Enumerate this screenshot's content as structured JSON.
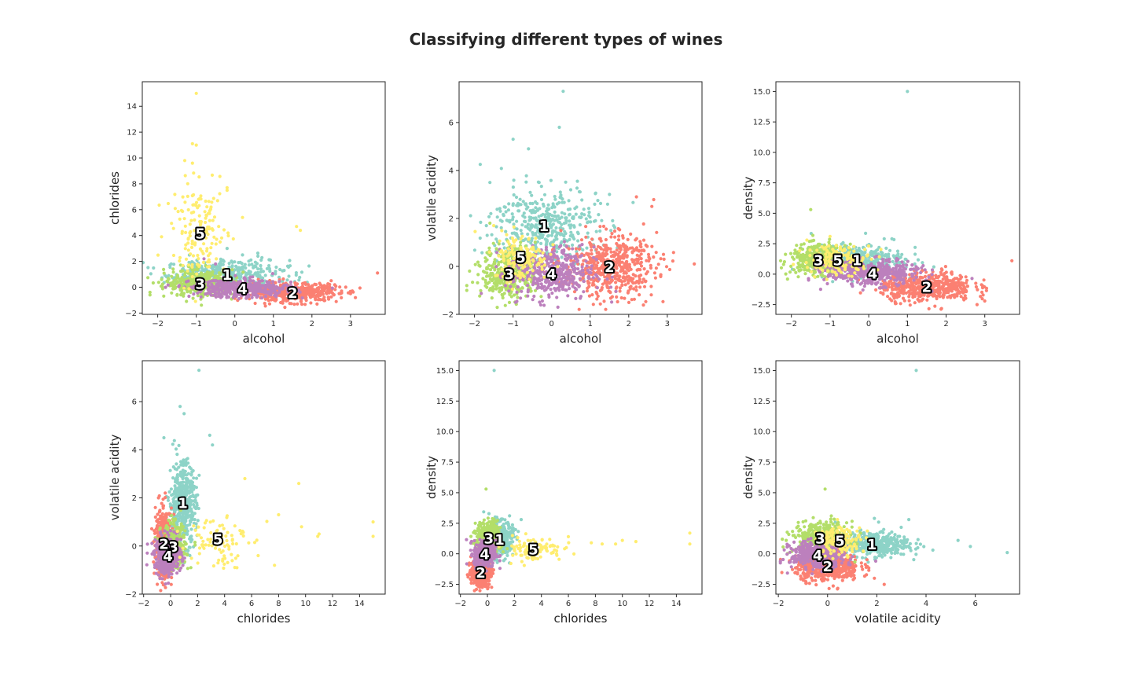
{
  "title": "Classifying different types of wines",
  "cluster_colors": {
    "1": "#8dd3c7",
    "2": "#fb8072",
    "3": "#b3de69",
    "4": "#bc80bd",
    "5": "#ffed6f"
  },
  "chart_data": [
    {
      "type": "scatter",
      "xlabel": "alcohol",
      "ylabel": "chlorides",
      "xlim": [
        -2.4,
        3.9
      ],
      "ylim": [
        -2.1,
        15.9
      ],
      "xticks": [
        -2,
        -1,
        0,
        1,
        2,
        3
      ],
      "yticks": [
        -2,
        0,
        2,
        4,
        6,
        8,
        10,
        12,
        14
      ],
      "xtick_labels": [
        "−2",
        "−1",
        "0",
        "1",
        "2",
        "3"
      ],
      "ytick_labels": [
        "−2",
        "0",
        "2",
        "4",
        "6",
        "8",
        "10",
        "12",
        "14"
      ],
      "clusters": [
        {
          "label": "1",
          "color": "#8dd3c7",
          "center": [
            -0.2,
            1.0
          ],
          "spread": [
            0.8,
            0.55
          ],
          "count": 380,
          "outliers": [
            [
              -0.2,
              3.0
            ],
            [
              0.2,
              2.5
            ],
            [
              0.6,
              2.4
            ],
            [
              0.9,
              1.4
            ]
          ]
        },
        {
          "label": "2",
          "color": "#fb8072",
          "center": [
            1.5,
            -0.4
          ],
          "spread": [
            0.6,
            0.35
          ],
          "count": 500,
          "outliers": [
            [
              3.0,
              -0.5
            ],
            [
              3.7,
              1.1
            ],
            [
              2.2,
              0.3
            ],
            [
              2.5,
              0.5
            ]
          ]
        },
        {
          "label": "3",
          "color": "#b3de69",
          "center": [
            -0.9,
            0.3
          ],
          "spread": [
            0.45,
            0.5
          ],
          "count": 360,
          "outliers": [
            [
              -2.2,
              -0.4
            ],
            [
              -2.2,
              -0.6
            ],
            [
              -1.6,
              1.4
            ],
            [
              -1.2,
              1.6
            ]
          ]
        },
        {
          "label": "4",
          "color": "#bc80bd",
          "center": [
            0.2,
            -0.1
          ],
          "spread": [
            0.65,
            0.35
          ],
          "count": 420,
          "outliers": [
            [
              -0.8,
              2.2
            ],
            [
              -0.5,
              1.8
            ]
          ]
        },
        {
          "label": "5",
          "color": "#ffed6f",
          "center": [
            -0.9,
            4.2
          ],
          "spread": [
            0.35,
            1.8
          ],
          "count": 150,
          "outliers": [
            [
              -1.0,
              15.0
            ],
            [
              -1.1,
              11.1
            ],
            [
              -1.0,
              11.0
            ],
            [
              -1.3,
              9.8
            ],
            [
              -1.1,
              9.6
            ],
            [
              -0.2,
              7.7
            ],
            [
              -0.2,
              7.5
            ],
            [
              1.6,
              4.7
            ],
            [
              1.7,
              4.4
            ],
            [
              -1.9,
              3.9
            ],
            [
              0.2,
              5.4
            ]
          ]
        }
      ]
    },
    {
      "type": "scatter",
      "xlabel": "alcohol",
      "ylabel": "volatile acidity",
      "xlim": [
        -2.4,
        3.9
      ],
      "ylim": [
        -2.0,
        7.7
      ],
      "xticks": [
        -2,
        -1,
        0,
        1,
        2,
        3
      ],
      "yticks": [
        -2,
        0,
        2,
        4,
        6
      ],
      "xtick_labels": [
        "−2",
        "−1",
        "0",
        "1",
        "2",
        "3"
      ],
      "ytick_labels": [
        "−2",
        "0",
        "2",
        "4",
        "6"
      ],
      "clusters": [
        {
          "label": "1",
          "color": "#8dd3c7",
          "center": [
            -0.2,
            1.7
          ],
          "spread": [
            0.7,
            0.8
          ],
          "count": 420,
          "outliers": [
            [
              0.3,
              7.3
            ],
            [
              0.2,
              5.8
            ],
            [
              -1.0,
              5.3
            ],
            [
              -0.6,
              4.9
            ],
            [
              1.5,
              3.0
            ],
            [
              -1.6,
              3.5
            ]
          ]
        },
        {
          "label": "2",
          "color": "#fb8072",
          "center": [
            1.5,
            0.0
          ],
          "spread": [
            0.6,
            0.65
          ],
          "count": 520,
          "outliers": [
            [
              3.7,
              0.1
            ],
            [
              2.6,
              2.5
            ],
            [
              2.2,
              2.9
            ],
            [
              2.9,
              0.5
            ]
          ]
        },
        {
          "label": "3",
          "color": "#b3de69",
          "center": [
            -1.1,
            -0.3
          ],
          "spread": [
            0.35,
            0.55
          ],
          "count": 360,
          "outliers": [
            [
              -2.2,
              -0.8
            ],
            [
              -2.2,
              -1.0
            ],
            [
              -1.6,
              1.8
            ]
          ]
        },
        {
          "label": "4",
          "color": "#bc80bd",
          "center": [
            0.0,
            -0.3
          ],
          "spread": [
            0.55,
            0.55
          ],
          "count": 420,
          "outliers": []
        },
        {
          "label": "5",
          "color": "#ffed6f",
          "center": [
            -0.8,
            0.4
          ],
          "spread": [
            0.35,
            0.5
          ],
          "count": 140,
          "outliers": [
            [
              -1.5,
              1.7
            ]
          ]
        }
      ]
    },
    {
      "type": "scatter",
      "xlabel": "alcohol",
      "ylabel": "density",
      "xlim": [
        -2.4,
        3.9
      ],
      "ylim": [
        -3.3,
        15.8
      ],
      "xticks": [
        -2,
        -1,
        0,
        1,
        2,
        3
      ],
      "yticks": [
        -2.5,
        0.0,
        2.5,
        5.0,
        7.5,
        10.0,
        12.5,
        15.0
      ],
      "xtick_labels": [
        "−2",
        "−1",
        "0",
        "1",
        "2",
        "3"
      ],
      "ytick_labels": [
        "−2.5",
        "0.0",
        "2.5",
        "5.0",
        "7.5",
        "10.0",
        "12.5",
        "15.0"
      ],
      "clusters": [
        {
          "label": "1",
          "color": "#8dd3c7",
          "center": [
            -0.3,
            1.2
          ],
          "spread": [
            0.6,
            0.6
          ],
          "count": 360,
          "outliers": [
            [
              1.0,
              15.0
            ],
            [
              0.6,
              2.9
            ],
            [
              1.2,
              2.2
            ],
            [
              0.4,
              2.9
            ]
          ]
        },
        {
          "label": "2",
          "color": "#fb8072",
          "center": [
            1.5,
            -1.0
          ],
          "spread": [
            0.6,
            0.6
          ],
          "count": 520,
          "outliers": [
            [
              3.7,
              1.1
            ],
            [
              3.0,
              -2.2
            ],
            [
              2.8,
              -2.5
            ]
          ]
        },
        {
          "label": "3",
          "color": "#b3de69",
          "center": [
            -1.3,
            1.2
          ],
          "spread": [
            0.35,
            0.6
          ],
          "count": 400,
          "outliers": [
            [
              -1.5,
              5.3
            ],
            [
              -2.2,
              0.8
            ],
            [
              -2.1,
              -0.4
            ]
          ]
        },
        {
          "label": "4",
          "color": "#bc80bd",
          "center": [
            0.1,
            0.1
          ],
          "spread": [
            0.6,
            0.5
          ],
          "count": 420,
          "outliers": []
        },
        {
          "label": "5",
          "color": "#ffed6f",
          "center": [
            -0.8,
            1.2
          ],
          "spread": [
            0.45,
            0.6
          ],
          "count": 140,
          "outliers": [
            [
              -1.0,
              3.1
            ],
            [
              -1.6,
              2.8
            ]
          ]
        }
      ]
    },
    {
      "type": "scatter",
      "xlabel": "chlorides",
      "ylabel": "volatile acidity",
      "xlim": [
        -2.1,
        15.9
      ],
      "ylim": [
        -2.0,
        7.7
      ],
      "xticks": [
        -2,
        0,
        2,
        4,
        6,
        8,
        10,
        12,
        14
      ],
      "yticks": [
        -2,
        0,
        2,
        4,
        6
      ],
      "xtick_labels": [
        "−2",
        "0",
        "2",
        "4",
        "6",
        "8",
        "10",
        "12",
        "14"
      ],
      "ytick_labels": [
        "−2",
        "0",
        "2",
        "4",
        "6"
      ],
      "clusters": [
        {
          "label": "1",
          "color": "#8dd3c7",
          "center": [
            0.9,
            1.8
          ],
          "spread": [
            0.5,
            0.85
          ],
          "count": 460,
          "outliers": [
            [
              2.1,
              7.3
            ],
            [
              0.7,
              5.8
            ],
            [
              1.0,
              5.5
            ],
            [
              2.9,
              4.6
            ],
            [
              3.1,
              4.2
            ],
            [
              -0.5,
              4.5
            ]
          ]
        },
        {
          "label": "2",
          "color": "#fb8072",
          "center": [
            -0.5,
            0.1
          ],
          "spread": [
            0.3,
            0.7
          ],
          "count": 440,
          "outliers": [
            [
              -0.9,
              2.0
            ],
            [
              -0.4,
              2.2
            ]
          ]
        },
        {
          "label": "3",
          "color": "#b3de69",
          "center": [
            0.2,
            0.0
          ],
          "spread": [
            0.45,
            0.45
          ],
          "count": 340,
          "outliers": [
            [
              1.5,
              -0.9
            ]
          ]
        },
        {
          "label": "4",
          "color": "#bc80bd",
          "center": [
            -0.2,
            -0.4
          ],
          "spread": [
            0.5,
            0.4
          ],
          "count": 380,
          "outliers": []
        },
        {
          "label": "5",
          "color": "#ffed6f",
          "center": [
            3.5,
            0.3
          ],
          "spread": [
            1.1,
            0.6
          ],
          "count": 90,
          "outliers": [
            [
              15.0,
              1.0
            ],
            [
              15.0,
              0.4
            ],
            [
              11.0,
              0.5
            ],
            [
              9.5,
              2.6
            ],
            [
              9.7,
              0.8
            ],
            [
              8.0,
              1.3
            ],
            [
              7.7,
              -0.8
            ],
            [
              5.5,
              2.8
            ],
            [
              10.9,
              0.4
            ]
          ]
        }
      ]
    },
    {
      "type": "scatter",
      "xlabel": "chlorides",
      "ylabel": "density",
      "xlim": [
        -2.1,
        15.9
      ],
      "ylim": [
        -3.3,
        15.8
      ],
      "xticks": [
        -2,
        0,
        2,
        4,
        6,
        8,
        10,
        12,
        14
      ],
      "yticks": [
        -2.5,
        0.0,
        2.5,
        5.0,
        7.5,
        10.0,
        12.5,
        15.0
      ],
      "xtick_labels": [
        "−2",
        "0",
        "2",
        "4",
        "6",
        "8",
        "10",
        "12",
        "14"
      ],
      "ytick_labels": [
        "−2.5",
        "0.0",
        "2.5",
        "5.0",
        "7.5",
        "10.0",
        "12.5",
        "15.0"
      ],
      "clusters": [
        {
          "label": "1",
          "color": "#8dd3c7",
          "center": [
            0.9,
            1.2
          ],
          "spread": [
            0.5,
            0.7
          ],
          "count": 380,
          "outliers": [
            [
              0.5,
              15.0
            ],
            [
              2.5,
              2.8
            ]
          ]
        },
        {
          "label": "2",
          "color": "#fb8072",
          "center": [
            -0.5,
            -1.5
          ],
          "spread": [
            0.35,
            0.55
          ],
          "count": 460,
          "outliers": [
            [
              -1.2,
              -2.4
            ]
          ]
        },
        {
          "label": "3",
          "color": "#b3de69",
          "center": [
            0.1,
            1.3
          ],
          "spread": [
            0.45,
            0.65
          ],
          "count": 380,
          "outliers": [
            [
              -0.1,
              5.3
            ],
            [
              -0.9,
              2.5
            ]
          ]
        },
        {
          "label": "4",
          "color": "#bc80bd",
          "center": [
            -0.2,
            0.0
          ],
          "spread": [
            0.4,
            0.55
          ],
          "count": 380,
          "outliers": []
        },
        {
          "label": "5",
          "color": "#ffed6f",
          "center": [
            3.4,
            0.4
          ],
          "spread": [
            1.1,
            0.5
          ],
          "count": 100,
          "outliers": [
            [
              15.0,
              1.7
            ],
            [
              15.0,
              0.8
            ],
            [
              11.0,
              1.0
            ],
            [
              10.0,
              1.1
            ],
            [
              9.5,
              0.8
            ],
            [
              8.5,
              0.8
            ],
            [
              7.7,
              0.9
            ],
            [
              6.0,
              1.4
            ]
          ]
        }
      ]
    },
    {
      "type": "scatter",
      "xlabel": "volatile acidity",
      "ylabel": "density",
      "xlim": [
        -2.1,
        7.8
      ],
      "ylim": [
        -3.3,
        15.8
      ],
      "xticks": [
        -2,
        0,
        2,
        4,
        6
      ],
      "yticks": [
        -2.5,
        0.0,
        2.5,
        5.0,
        7.5,
        10.0,
        12.5,
        15.0
      ],
      "xtick_labels": [
        "−2",
        "0",
        "2",
        "4",
        "6"
      ],
      "ytick_labels": [
        "−2.5",
        "0.0",
        "2.5",
        "5.0",
        "7.5",
        "10.0",
        "12.5",
        "15.0"
      ],
      "clusters": [
        {
          "label": "1",
          "color": "#8dd3c7",
          "center": [
            1.8,
            0.8
          ],
          "spread": [
            0.75,
            0.5
          ],
          "count": 420,
          "outliers": [
            [
              3.6,
              15.0
            ],
            [
              7.3,
              0.1
            ],
            [
              5.8,
              0.6
            ],
            [
              5.3,
              1.1
            ],
            [
              3.3,
              2.8
            ],
            [
              1.9,
              2.9
            ]
          ]
        },
        {
          "label": "2",
          "color": "#fb8072",
          "center": [
            0.0,
            -1.0
          ],
          "spread": [
            0.65,
            0.6
          ],
          "count": 520,
          "outliers": [
            [
              2.3,
              -2.5
            ],
            [
              1.9,
              -2.0
            ]
          ]
        },
        {
          "label": "3",
          "color": "#b3de69",
          "center": [
            -0.3,
            1.3
          ],
          "spread": [
            0.55,
            0.65
          ],
          "count": 380,
          "outliers": [
            [
              -0.1,
              5.3
            ],
            [
              -1.4,
              1.5
            ]
          ]
        },
        {
          "label": "4",
          "color": "#bc80bd",
          "center": [
            -0.4,
            -0.1
          ],
          "spread": [
            0.55,
            0.55
          ],
          "count": 420,
          "outliers": []
        },
        {
          "label": "5",
          "color": "#ffed6f",
          "center": [
            0.5,
            1.1
          ],
          "spread": [
            0.45,
            0.55
          ],
          "count": 140,
          "outliers": [
            [
              0.4,
              2.8
            ]
          ]
        }
      ]
    }
  ]
}
